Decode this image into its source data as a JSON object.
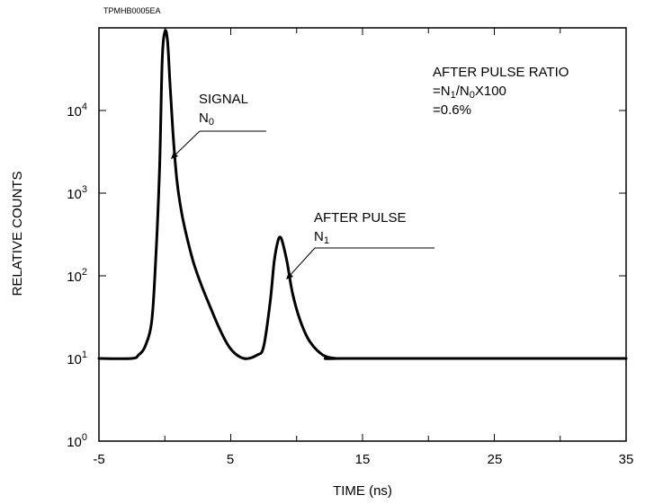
{
  "figure_code": "TPMHB0005EA",
  "chart_data": {
    "type": "line",
    "title": "",
    "xlabel": "TIME (ns)",
    "ylabel": "RELATIVE COUNTS",
    "xlim": [
      -5,
      35
    ],
    "ylim": [
      1,
      100000
    ],
    "yscale": "log",
    "grid": false,
    "x_ticks": [
      -5,
      5,
      15,
      25,
      35
    ],
    "y_ticks": [
      {
        "value": 1,
        "base": "10",
        "exp": "0"
      },
      {
        "value": 10,
        "base": "10",
        "exp": "1"
      },
      {
        "value": 100,
        "base": "10",
        "exp": "2"
      },
      {
        "value": 1000,
        "base": "10",
        "exp": "3"
      },
      {
        "value": 10000,
        "base": "10",
        "exp": "4"
      }
    ],
    "series": [
      {
        "x": [
          -5,
          -2.5,
          -2.0,
          -1.5,
          -1.0,
          -0.7,
          -0.4,
          -0.2,
          0.0,
          0.2,
          0.4,
          0.6,
          0.8,
          1.0,
          1.3,
          1.7,
          2.2,
          2.8,
          3.5,
          4.2,
          5.0,
          6.0,
          7.0,
          7.5,
          8.0,
          8.3,
          8.6,
          8.8,
          9.0,
          9.3,
          9.7,
          10.3,
          11.0,
          12.0,
          13.0,
          14.0,
          35
        ],
        "y": [
          10,
          10,
          11,
          14,
          28,
          150,
          2000,
          40000,
          90000,
          70000,
          20000,
          6000,
          2200,
          1100,
          550,
          280,
          140,
          75,
          40,
          22,
          13,
          10,
          11,
          14,
          50,
          150,
          270,
          290,
          230,
          140,
          60,
          28,
          16,
          11,
          10,
          10,
          10
        ]
      }
    ],
    "annotations": {
      "signal": {
        "label": "SIGNAL",
        "sub_base": "N",
        "sub_index": "0"
      },
      "after_pulse": {
        "label": "AFTER PULSE",
        "sub_base": "N",
        "sub_index": "1"
      },
      "ratio": {
        "line1": "AFTER PULSE RATIO",
        "line2_prefix": "=N",
        "line2_i1": "1",
        "line2_mid": "/N",
        "line2_i0": "0",
        "line2_suffix": "X100",
        "line3": "=0.6%"
      }
    }
  }
}
